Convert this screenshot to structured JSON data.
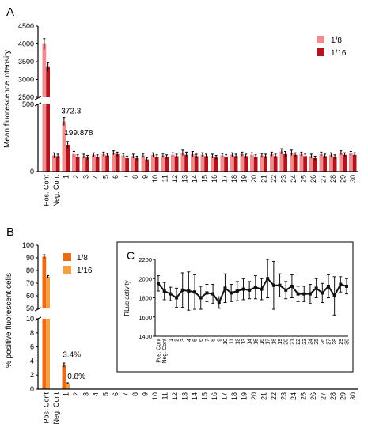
{
  "panels": {
    "a": {
      "letter": "A"
    },
    "b": {
      "letter": "B"
    },
    "c": {
      "letter": "C"
    }
  },
  "chart_data": [
    {
      "id": "A",
      "type": "bar",
      "title": "",
      "ylabel": "Mean fluorescence intensity",
      "xlabel": "",
      "y_break": {
        "lower_range": [
          0,
          500
        ],
        "upper_range": [
          2500,
          4500
        ]
      },
      "yticks_lower": [
        0,
        500
      ],
      "yticks_upper": [
        2500,
        3000,
        3500,
        4000,
        4500
      ],
      "legend_position": "top-right",
      "categories": [
        "Pos. Cont",
        "Neg. Cont",
        "1",
        "2",
        "3",
        "4",
        "5",
        "6",
        "7",
        "8",
        "9",
        "10",
        "11",
        "12",
        "13",
        "14",
        "15",
        "16",
        "17",
        "18",
        "19",
        "20",
        "21",
        "22",
        "23",
        "24",
        "25",
        "26",
        "27",
        "28",
        "29",
        "30"
      ],
      "annotations": [
        "372.3",
        "199.878"
      ],
      "series": [
        {
          "name": "1/8",
          "color": "#f28b8e",
          "values": [
            4000,
            120,
            372.3,
            130,
            115,
            125,
            130,
            140,
            120,
            115,
            120,
            125,
            120,
            125,
            140,
            130,
            125,
            115,
            120,
            125,
            130,
            125,
            120,
            130,
            150,
            140,
            130,
            115,
            130,
            125,
            140,
            135
          ],
          "errors": [
            150,
            20,
            30,
            20,
            15,
            15,
            15,
            15,
            15,
            15,
            15,
            15,
            15,
            15,
            20,
            20,
            15,
            15,
            15,
            15,
            15,
            15,
            15,
            15,
            20,
            20,
            15,
            15,
            15,
            15,
            15,
            15
          ]
        },
        {
          "name": "1/16",
          "color": "#b5131b",
          "values": [
            3350,
            115,
            199.878,
            110,
            105,
            110,
            120,
            130,
            100,
            100,
            90,
            110,
            110,
            115,
            125,
            115,
            115,
            105,
            110,
            115,
            115,
            110,
            115,
            115,
            130,
            125,
            115,
            100,
            115,
            110,
            125,
            125
          ],
          "errors": [
            120,
            15,
            25,
            15,
            15,
            15,
            15,
            15,
            15,
            15,
            15,
            15,
            15,
            15,
            20,
            15,
            15,
            15,
            15,
            15,
            15,
            15,
            15,
            15,
            20,
            15,
            15,
            15,
            15,
            15,
            15,
            15
          ]
        }
      ]
    },
    {
      "id": "B",
      "type": "bar",
      "title": "",
      "ylabel": "% positive fluorescent cells",
      "xlabel": "",
      "y_break": {
        "lower_range": [
          0,
          10
        ],
        "upper_range": [
          50,
          100
        ]
      },
      "yticks_lower": [
        0,
        2,
        4,
        6,
        8,
        10
      ],
      "yticks_upper": [
        50,
        60,
        70,
        80,
        90,
        100
      ],
      "legend_position": "top-left",
      "categories": [
        "Pos. Cont",
        "Neg. Cont",
        "1",
        "2",
        "3",
        "4",
        "5",
        "6",
        "7",
        "8",
        "9",
        "10",
        "11",
        "12",
        "13",
        "14",
        "15",
        "16",
        "17",
        "18",
        "19",
        "20",
        "21",
        "22",
        "23",
        "24",
        "25",
        "26",
        "27",
        "28",
        "29",
        "30"
      ],
      "annotations": [
        "3.4%",
        "0.8%"
      ],
      "series": [
        {
          "name": "1/8",
          "color": "#ee6a10",
          "values": [
            91,
            0,
            3.4,
            0,
            0,
            0,
            0,
            0,
            0,
            0,
            0,
            0,
            0,
            0,
            0,
            0,
            0,
            0,
            0,
            0,
            0,
            0,
            0,
            0,
            0,
            0,
            0,
            0,
            0,
            0,
            0,
            0
          ],
          "errors": [
            1.5,
            0,
            0.3,
            0,
            0,
            0,
            0,
            0,
            0,
            0,
            0,
            0,
            0,
            0,
            0,
            0,
            0,
            0,
            0,
            0,
            0,
            0,
            0,
            0,
            0,
            0,
            0,
            0,
            0,
            0,
            0,
            0
          ]
        },
        {
          "name": "1/16",
          "color": "#f5a040",
          "values": [
            75,
            0,
            0.8,
            0,
            0,
            0,
            0,
            0,
            0,
            0,
            0,
            0,
            0,
            0,
            0,
            0,
            0,
            0,
            0,
            0,
            0,
            0,
            0,
            0,
            0,
            0,
            0,
            0,
            0,
            0,
            0,
            0
          ],
          "errors": [
            1,
            0,
            0.1,
            0,
            0,
            0,
            0,
            0,
            0,
            0,
            0,
            0,
            0,
            0,
            0,
            0,
            0,
            0,
            0,
            0,
            0,
            0,
            0,
            0,
            0,
            0,
            0,
            0,
            0,
            0,
            0,
            0
          ]
        }
      ]
    },
    {
      "id": "C",
      "type": "line",
      "title": "",
      "ylabel": "RLuc activity",
      "xlabel": "",
      "ylim": [
        1400,
        2200
      ],
      "yticks": [
        1400,
        1600,
        1800,
        2000,
        2200
      ],
      "categories": [
        "Pos. Cont",
        "Neg. Cont",
        "1",
        "2",
        "3",
        "4",
        "5",
        "6",
        "7",
        "8",
        "9",
        "10",
        "11",
        "12",
        "13",
        "14",
        "15",
        "16",
        "17",
        "18",
        "19",
        "20",
        "21",
        "22",
        "23",
        "24",
        "25",
        "26",
        "27",
        "28",
        "29",
        "30"
      ],
      "series": [
        {
          "color": "#111111",
          "values": [
            1950,
            1870,
            1840,
            1800,
            1880,
            1870,
            1860,
            1800,
            1850,
            1840,
            1750,
            1900,
            1850,
            1870,
            1890,
            1880,
            1910,
            1890,
            2000,
            1930,
            1930,
            1880,
            1920,
            1840,
            1840,
            1840,
            1900,
            1850,
            1920,
            1820,
            1940,
            1920
          ],
          "errors": [
            80,
            90,
            70,
            100,
            180,
            200,
            180,
            120,
            90,
            100,
            60,
            150,
            90,
            100,
            110,
            90,
            120,
            110,
            200,
            250,
            120,
            90,
            120,
            80,
            80,
            100,
            100,
            100,
            120,
            200,
            80,
            80
          ]
        }
      ]
    }
  ]
}
